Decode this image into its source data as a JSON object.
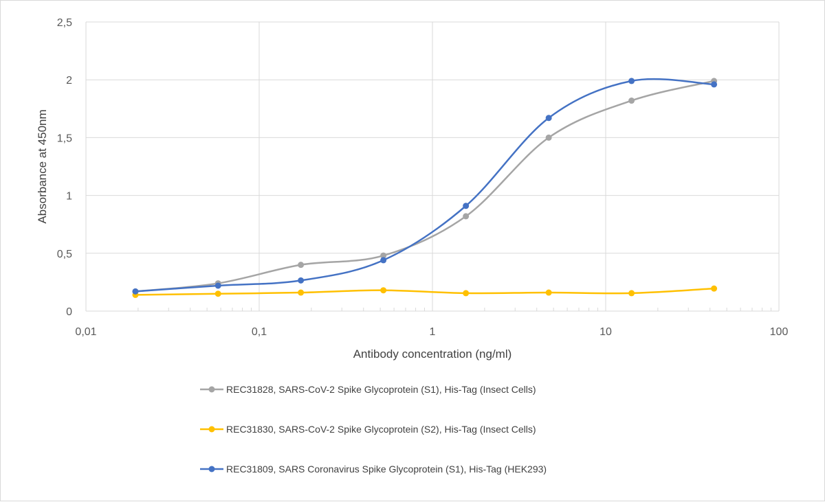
{
  "chart_data": {
    "type": "line",
    "title": "",
    "xlabel": "Antibody concentration (ng/ml)",
    "ylabel": "Absorbance at 450nm",
    "xscale": "log",
    "xlim": [
      0.01,
      100
    ],
    "ylim": [
      0,
      2.5
    ],
    "xticks": [
      0.01,
      0.1,
      1,
      10,
      100
    ],
    "xtick_labels": [
      "0,01",
      "0,1",
      "1",
      "10",
      "100"
    ],
    "yticks": [
      0,
      0.5,
      1,
      1.5,
      2,
      2.5
    ],
    "ytick_labels": [
      "0",
      "0,5",
      "1",
      "1,5",
      "2",
      "2,5"
    ],
    "grid": true,
    "legend_position": "bottom",
    "x": [
      0.0193,
      0.0579,
      0.174,
      0.521,
      1.56,
      4.69,
      14.1,
      42.2
    ],
    "series": [
      {
        "name": "REC31828, SARS-CoV-2 Spike Glycoprotein (S1), His-Tag (Insect Cells)",
        "color": "#a5a5a5",
        "values": [
          0.17,
          0.24,
          0.4,
          0.48,
          0.82,
          1.5,
          1.82,
          1.99
        ]
      },
      {
        "name": "REC31830, SARS-CoV-2 Spike Glycoprotein (S2), His-Tag (Insect Cells)",
        "color": "#ffc000",
        "values": [
          0.14,
          0.15,
          0.16,
          0.18,
          0.155,
          0.16,
          0.155,
          0.195
        ]
      },
      {
        "name": "REC31809, SARS Coronavirus Spike Glycoprotein (S1), His-Tag (HEK293)",
        "color": "#4472c4",
        "values": [
          0.17,
          0.22,
          0.265,
          0.44,
          0.91,
          1.67,
          1.99,
          1.96
        ]
      }
    ]
  }
}
